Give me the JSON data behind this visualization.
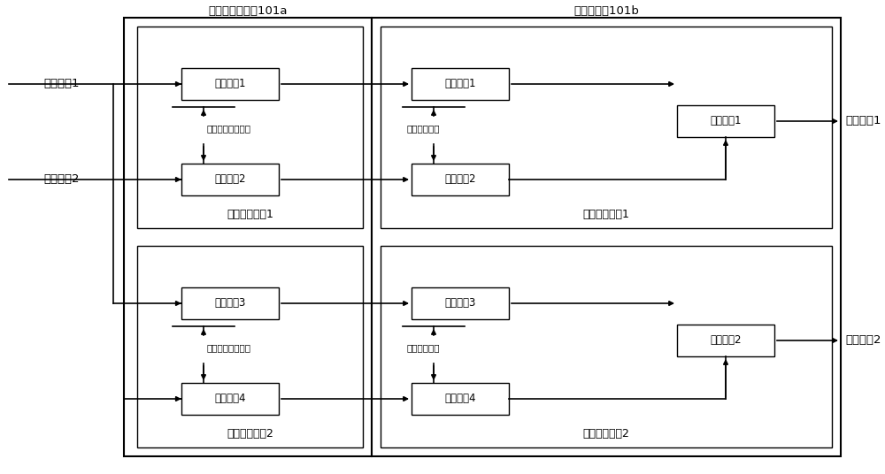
{
  "bg_color": "#ffffff",
  "box_facecolor": "#ffffff",
  "box_edgecolor": "#000000",
  "outer_box1_label": "发送能量分配器101a",
  "outer_box2_label": "发送耦合器101b",
  "unit_labels": [
    "能量分配单元1",
    "能量分配单元2",
    "发送耦合单元1",
    "发送耦合单元2"
  ],
  "multiplier_labels": [
    "第一乘法1",
    "第一乘法2",
    "第一乘法3",
    "第一乘法4",
    "第二乘法1",
    "第二乘法2",
    "第二乘法3",
    "第二乘法4"
  ],
  "adder_labels": [
    "第一加法1",
    "第一加法2"
  ],
  "param_labels_energy": [
    "第一能量分配参数",
    "第一能量分配参数"
  ],
  "param_labels_phase": [
    "第一相位参数",
    "第一相位参数"
  ],
  "input_labels": [
    "发送信号1",
    "发送信号2"
  ],
  "output_labels": [
    "输出信号1",
    "输出信号2"
  ],
  "font_size_box": 8.5,
  "font_size_label": 9,
  "font_size_outer": 9.5,
  "font_size_io": 9.5,
  "font_size_param": 7.5
}
